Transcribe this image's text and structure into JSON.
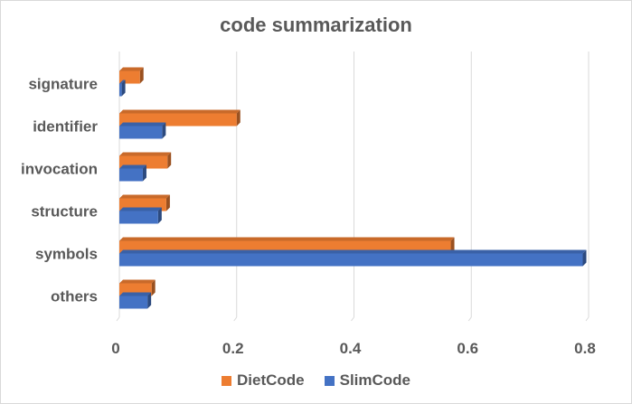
{
  "chart_data": {
    "type": "bar",
    "orientation": "horizontal",
    "title": "code summarization",
    "categories": [
      "signature",
      "identifier",
      "invocation",
      "structure",
      "symbols",
      "others"
    ],
    "series": [
      {
        "name": "DietCode",
        "color": "#ED7D31",
        "values": [
          0.035,
          0.2,
          0.082,
          0.08,
          0.565,
          0.055
        ]
      },
      {
        "name": "SlimCode",
        "color": "#4472C4",
        "values": [
          0.004,
          0.073,
          0.04,
          0.066,
          0.79,
          0.048
        ]
      }
    ],
    "xlim": [
      0,
      0.8
    ],
    "xticks": [
      "0",
      "0.2",
      "0.4",
      "0.6",
      "0.8"
    ],
    "grid": true,
    "legend": "bottom"
  }
}
